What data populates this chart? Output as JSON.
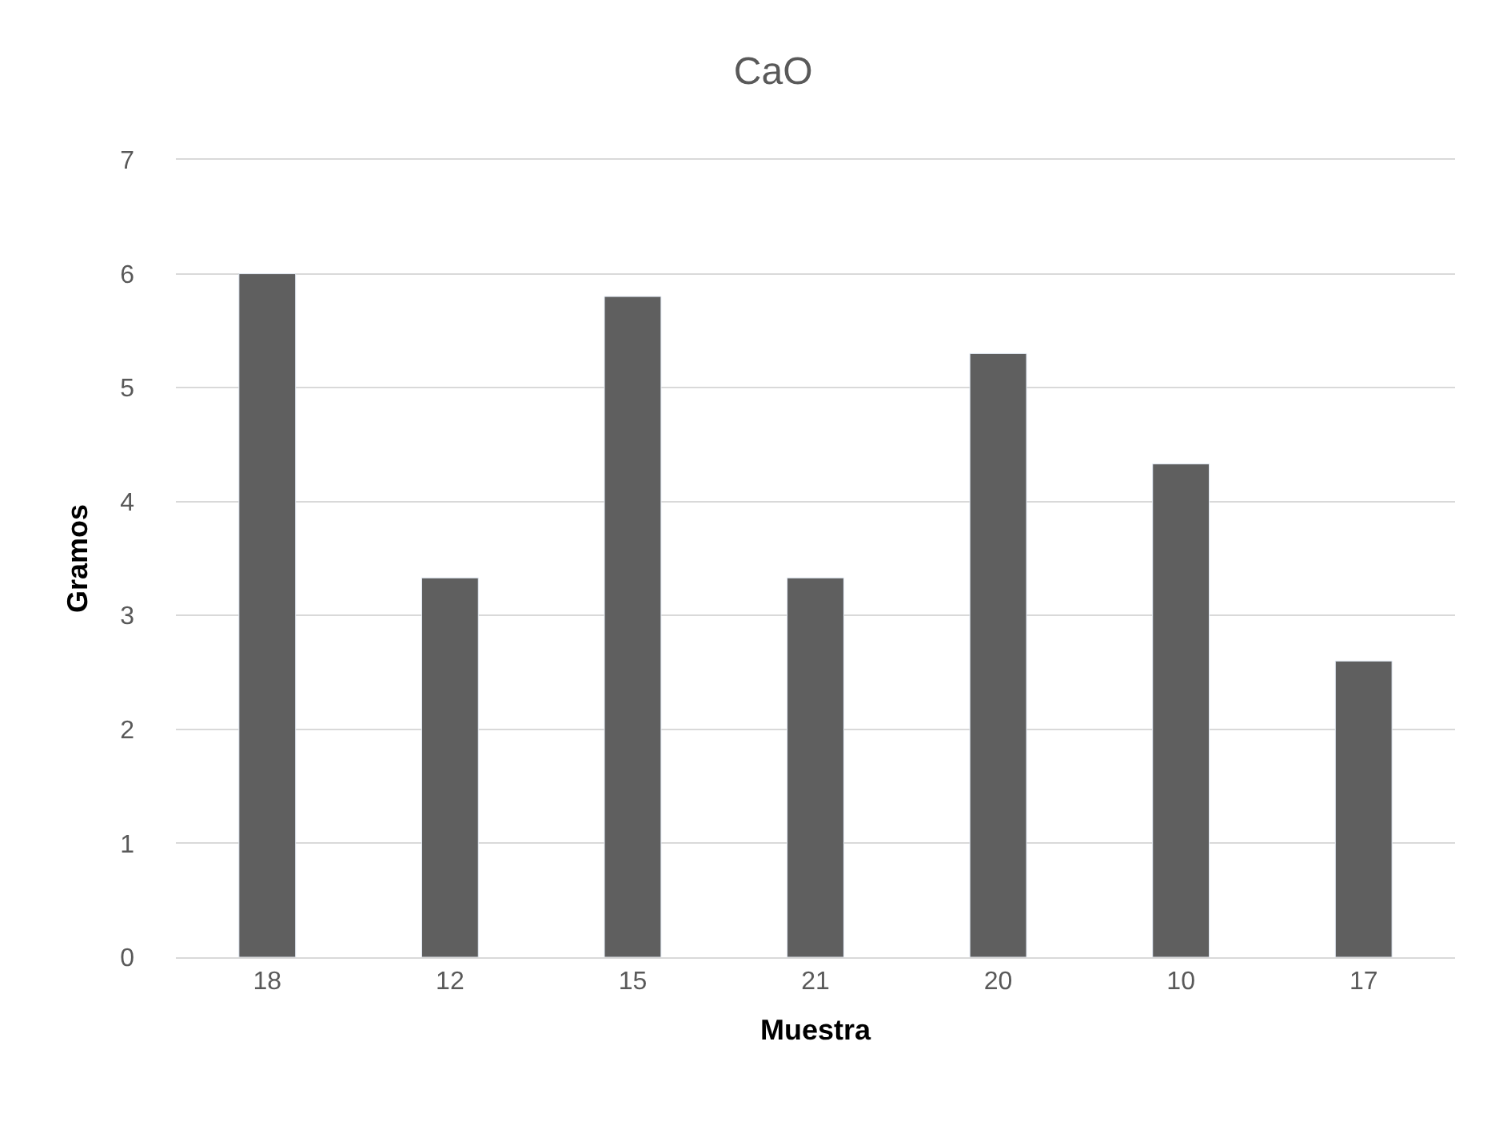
{
  "chart_data": {
    "type": "bar",
    "title": "CaO",
    "xlabel": "Muestra",
    "ylabel": "Gramos",
    "categories": [
      "18",
      "12",
      "15",
      "21",
      "20",
      "10",
      "17"
    ],
    "values": [
      6.0,
      3.33,
      5.8,
      3.33,
      5.3,
      4.33,
      2.6
    ],
    "color": "#5f5f5f",
    "ylim": [
      0,
      7
    ],
    "yticks": [
      0,
      1,
      2,
      3,
      4,
      5,
      6,
      7
    ],
    "grid": "y"
  }
}
